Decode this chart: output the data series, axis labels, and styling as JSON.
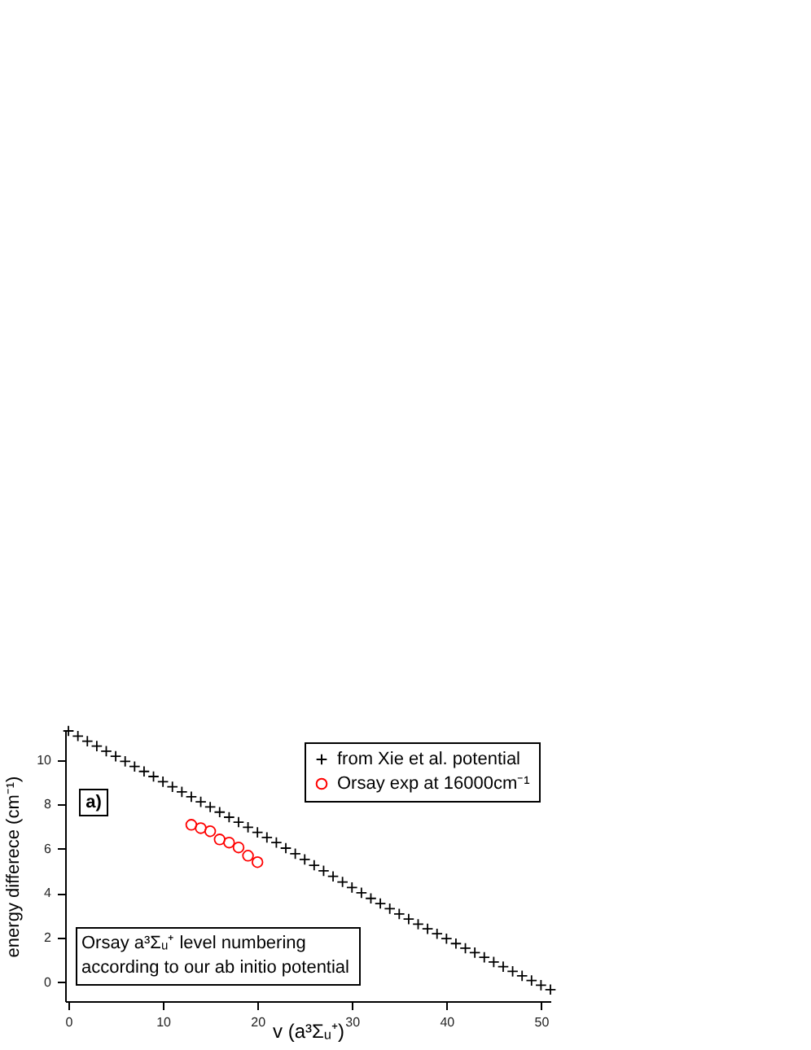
{
  "chart_data": {
    "type": "scatter",
    "xlabel": "v (a³Σᵤ⁺)",
    "ylabel": "energy differece (cm⁻¹)",
    "annotations": [
      "a)",
      "Orsay a³Σᵤ⁺ level numbering\naccording to our ab initio potential"
    ],
    "xlim": [
      -0.35,
      51
    ],
    "ylim": [
      -0.85,
      11.3
    ],
    "xticks": [
      0,
      10,
      20,
      30,
      40,
      50
    ],
    "yticks": [
      0,
      2,
      4,
      6,
      8,
      10
    ],
    "legend": "top right",
    "series": [
      {
        "name": "from Xie et al. potential",
        "color": "#000000",
        "marker": "cross",
        "x": [
          0,
          1,
          2,
          3,
          4,
          5,
          6,
          7,
          8,
          9,
          10,
          11,
          12,
          13,
          14,
          15,
          16,
          17,
          18,
          19,
          20,
          21,
          22,
          23,
          24,
          25,
          26,
          27,
          28,
          29,
          30,
          31,
          32,
          33,
          34,
          35,
          36,
          37,
          38,
          39,
          40,
          41,
          42,
          43,
          44,
          45,
          46,
          47,
          48,
          49,
          50,
          51
        ],
        "values": [
          11.3,
          11.07,
          10.84,
          10.62,
          10.39,
          10.16,
          9.93,
          9.7,
          9.48,
          9.25,
          9.02,
          8.79,
          8.56,
          8.34,
          8.11,
          7.88,
          7.65,
          7.42,
          7.2,
          6.97,
          6.74,
          6.51,
          6.28,
          6.03,
          5.78,
          5.52,
          5.26,
          5.01,
          4.76,
          4.51,
          4.26,
          4.02,
          3.77,
          3.54,
          3.31,
          3.07,
          2.84,
          2.61,
          2.4,
          2.18,
          1.96,
          1.74,
          1.53,
          1.33,
          1.12,
          0.91,
          0.7,
          0.49,
          0.29,
          0.08,
          -0.13,
          -0.33
        ]
      },
      {
        "name": "Orsay exp at 16000cm⁻¹",
        "color": "#ff0000",
        "marker": "circle",
        "x": [
          13,
          14,
          15,
          16,
          17,
          18,
          19,
          20
        ],
        "values": [
          7.08,
          6.93,
          6.79,
          6.42,
          6.28,
          6.06,
          5.69,
          5.4
        ]
      }
    ]
  }
}
